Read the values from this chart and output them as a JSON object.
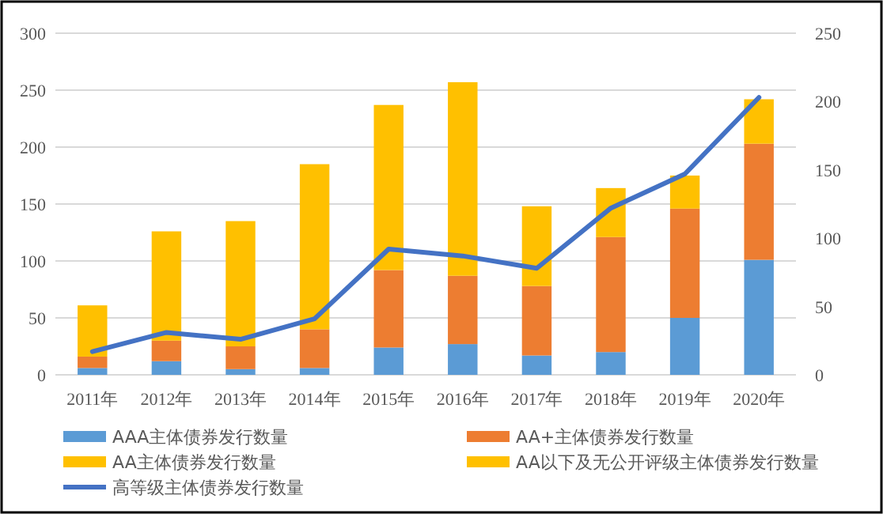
{
  "chart_data": {
    "type": "bar",
    "stacked": true,
    "categories": [
      "2011年",
      "2012年",
      "2013年",
      "2014年",
      "2015年",
      "2016年",
      "2017年",
      "2018年",
      "2019年",
      "2020年"
    ],
    "series": [
      {
        "name": "AAA主体债券发行数量",
        "color": "#5b9bd5",
        "values": [
          6,
          12,
          5,
          6,
          24,
          27,
          17,
          20,
          50,
          101
        ]
      },
      {
        "name": "AA+主体债券发行数量",
        "color": "#ed7d31",
        "values": [
          10,
          18,
          20,
          34,
          68,
          60,
          61,
          101,
          96,
          102
        ]
      },
      {
        "name": "AA主体债券发行数量",
        "color": "#ffc000",
        "values": [
          45,
          96,
          110,
          145,
          145,
          170,
          70,
          43,
          29,
          39
        ]
      },
      {
        "name": "AA以下及无公开评级主体债券发行数量",
        "color": "#ffc000",
        "values": [
          null,
          null,
          null,
          null,
          null,
          null,
          null,
          null,
          null,
          null
        ]
      },
      {
        "name": "高等级主体债券发行数量",
        "color": "#4472c4",
        "type": "line",
        "axis": "y2",
        "values": [
          17,
          31,
          26,
          41,
          92,
          87,
          78,
          122,
          147,
          203
        ]
      }
    ],
    "ylim": [
      0,
      300
    ],
    "yticks": [
      0,
      50,
      100,
      150,
      200,
      250,
      300
    ],
    "y2lim": [
      0,
      250
    ],
    "y2ticks": [
      0,
      50,
      100,
      150,
      200,
      250
    ],
    "grid": "y",
    "legend": "bottom"
  }
}
